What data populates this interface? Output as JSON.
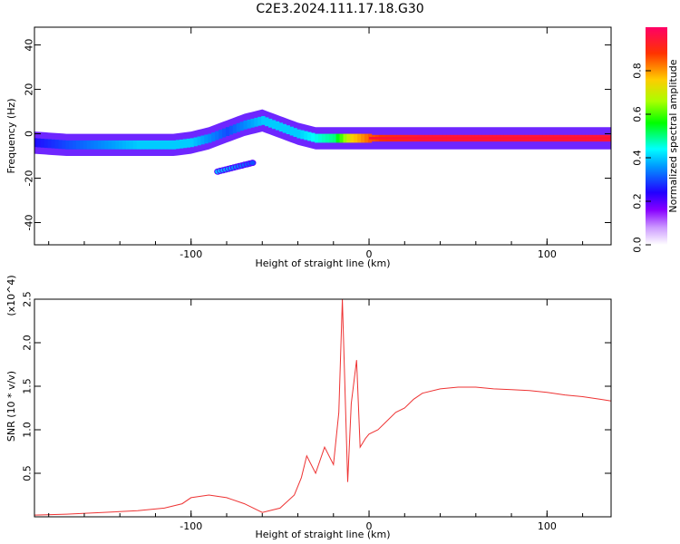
{
  "title": "C2E3.2024.111.17.18.G30",
  "chart_data": [
    {
      "type": "heatmap",
      "xlabel": "Height of straight line (km)",
      "ylabel": "Frequency (Hz)",
      "xlim": [
        -188,
        136
      ],
      "ylim": [
        -50,
        48
      ],
      "xticks": [
        -100,
        0,
        100
      ],
      "yticks": [
        -40,
        -20,
        0,
        20,
        40
      ],
      "colorbar": {
        "label": "Normalized spectral amplitude",
        "range": [
          0,
          1
        ],
        "ticks": [
          0.0,
          0.2,
          0.4,
          0.6,
          0.8
        ]
      },
      "ridge": {
        "x": [
          -188,
          -170,
          -150,
          -130,
          -110,
          -100,
          -90,
          -80,
          -70,
          -60,
          -50,
          -40,
          -30,
          -20,
          -10,
          0,
          10,
          30,
          60,
          90,
          120,
          136
        ],
        "y": [
          -4,
          -5,
          -5,
          -5,
          -5,
          -4,
          -2,
          1,
          4,
          6,
          3,
          0,
          -2,
          -2,
          -2,
          -2,
          -2,
          -2,
          -2,
          -2,
          -2,
          -2
        ],
        "amplitude": [
          0.25,
          0.3,
          0.35,
          0.4,
          0.4,
          0.4,
          0.35,
          0.3,
          0.35,
          0.4,
          0.4,
          0.4,
          0.45,
          0.5,
          0.75,
          0.85,
          0.9,
          0.95,
          0.95,
          0.95,
          0.95,
          0.95
        ]
      },
      "secondary_branch": {
        "x": [
          -85,
          -75,
          -65
        ],
        "y": [
          -17,
          -15,
          -13
        ],
        "amplitude": [
          0.4,
          0.35,
          0.3
        ]
      }
    },
    {
      "type": "line",
      "xlabel": "Height of straight line (km)",
      "ylabel": "SNR (10 * v/v)",
      "scale_label": "(x10^4)",
      "xlim": [
        -188,
        136
      ],
      "ylim": [
        0,
        2.5
      ],
      "xticks": [
        -100,
        0,
        100
      ],
      "yticks": [
        0.5,
        1.0,
        1.5,
        2.0,
        2.5
      ],
      "series": [
        {
          "color": "#ee3333",
          "x": [
            -188,
            -170,
            -150,
            -130,
            -115,
            -105,
            -100,
            -90,
            -80,
            -70,
            -60,
            -50,
            -42,
            -38,
            -35,
            -30,
            -25,
            -20,
            -17,
            -15,
            -12,
            -10,
            -7,
            -5,
            -2,
            0,
            5,
            10,
            15,
            20,
            25,
            30,
            40,
            50,
            60,
            70,
            80,
            90,
            100,
            110,
            120,
            130,
            136
          ],
          "y": [
            0.02,
            0.03,
            0.05,
            0.07,
            0.1,
            0.15,
            0.22,
            0.25,
            0.22,
            0.15,
            0.05,
            0.1,
            0.25,
            0.45,
            0.7,
            0.5,
            0.8,
            0.6,
            1.2,
            2.5,
            0.4,
            1.3,
            1.8,
            0.8,
            0.9,
            0.95,
            1.0,
            1.1,
            1.2,
            1.25,
            1.35,
            1.42,
            1.47,
            1.49,
            1.49,
            1.47,
            1.46,
            1.45,
            1.43,
            1.4,
            1.38,
            1.35,
            1.33
          ]
        }
      ]
    }
  ]
}
